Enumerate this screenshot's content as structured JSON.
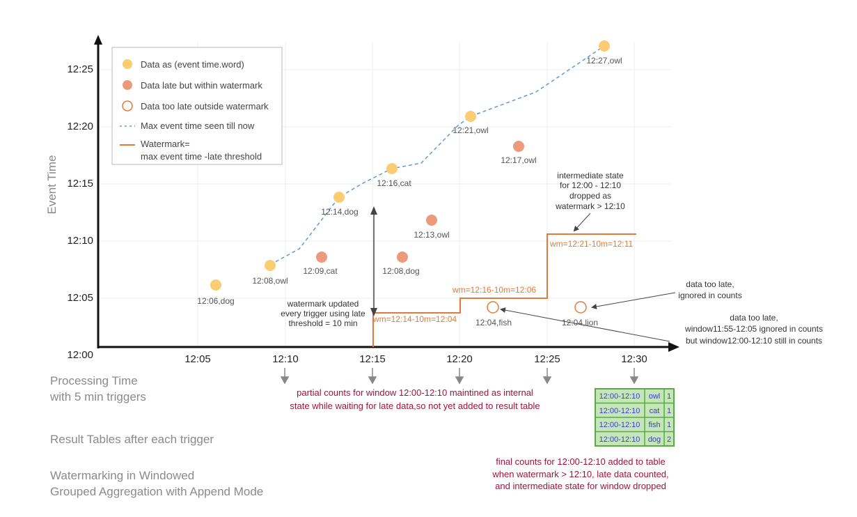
{
  "y_axis_title": "Event Time",
  "y_ticks": [
    "12:00",
    "12:05",
    "12:10",
    "12:15",
    "12:20",
    "12:25"
  ],
  "x_ticks": [
    "12:05",
    "12:10",
    "12:15",
    "12:20",
    "12:25",
    "12:30"
  ],
  "legend": {
    "on_time": "Data as (event time.word)",
    "late_within": "Data late but within watermark",
    "too_late": "Data too late outside watermark",
    "max_event": "Max event time seen till now",
    "watermark_1": "Watermark=",
    "watermark_2": "max event time -late threshold"
  },
  "points": [
    {
      "label": "12:06,dog",
      "kind": "on_time"
    },
    {
      "label": "12:08,owl",
      "kind": "on_time"
    },
    {
      "label": "12:14,dog",
      "kind": "on_time"
    },
    {
      "label": "12:16,cat",
      "kind": "on_time"
    },
    {
      "label": "12:21,owl",
      "kind": "on_time"
    },
    {
      "label": "12:27,owl",
      "kind": "on_time"
    },
    {
      "label": "12:09,cat",
      "kind": "late"
    },
    {
      "label": "12:08,dog",
      "kind": "late"
    },
    {
      "label": "12:13,owl",
      "kind": "late"
    },
    {
      "label": "12:17,owl",
      "kind": "late"
    },
    {
      "label": "12:04,fish",
      "kind": "too_late"
    },
    {
      "label": "12:04,lion",
      "kind": "too_late"
    }
  ],
  "watermarks": [
    "wm=12:14-10m=12:04",
    "wm=12:16-10m=12:06",
    "wm=12:21-10m=12:11"
  ],
  "notes": {
    "wm_updated": [
      "watermark updated",
      "every trigger using late",
      "threshold = 10 min"
    ],
    "intermediate": [
      "intermediate state",
      "for 12:00 - 12:10",
      "dropped as",
      "watermark > 12:10"
    ],
    "ignored": [
      "data too late,",
      "ignored in counts"
    ],
    "window": [
      "data too late,",
      "window11:55-12:05 ignored in counts",
      "but window12:00-12:10  still in counts"
    ]
  },
  "processing_time": [
    "Processing Time",
    "with 5 min triggers"
  ],
  "partial_counts": [
    "partial counts for window 12:00-12:10 maintined as internal",
    "state while waiting for late data,so not yet added to result table"
  ],
  "result_tables_label": "Result Tables after each trigger",
  "result_table": [
    [
      "12:00-12:10",
      "owl",
      "1"
    ],
    [
      "12:00-12:10",
      "cat",
      "1"
    ],
    [
      "12:00-12:10",
      "fish",
      "1"
    ],
    [
      "12:00-12:10",
      "dog",
      "2"
    ]
  ],
  "final_counts": [
    "final counts for 12:00-12:10 added to table",
    "when watermark > 12:10, late data counted,",
    "and intermediate state for window dropped"
  ],
  "footer_title": [
    "Watermarking in Windowed",
    "Grouped Aggregation with Append Mode"
  ],
  "colors": {
    "on_time": "#fbcd72",
    "late": "#ec9a7c",
    "too_late": "#e07b39",
    "max_line": "#5b9bd5",
    "watermark": "#e07b39",
    "table_fill": "#c5e6b6",
    "table_border": "#5aa84a"
  }
}
